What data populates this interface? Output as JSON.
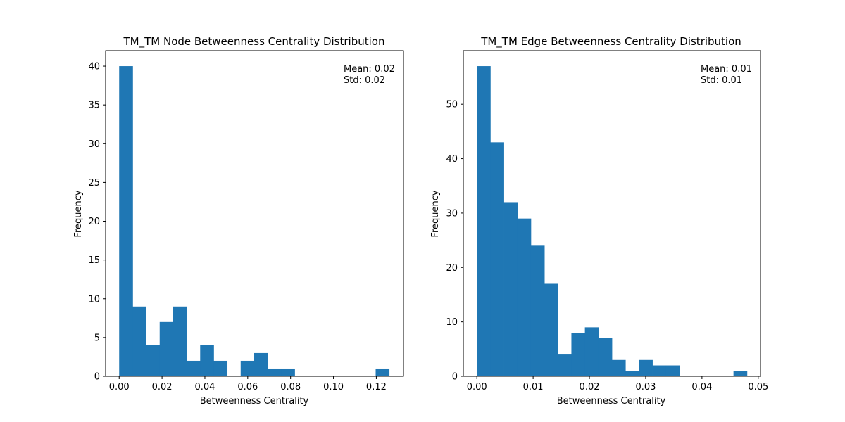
{
  "chart_data": [
    {
      "type": "bar",
      "title": "TM_TM Node Betweenness Centrality Distribution",
      "xlabel": "Betweenness Centrality",
      "ylabel": "Frequency",
      "xlim": [
        -0.00632,
        0.13268
      ],
      "ylim": [
        0,
        42
      ],
      "xticks": [
        0.0,
        0.02,
        0.04,
        0.06,
        0.08,
        0.1,
        0.12
      ],
      "xtick_labels": [
        "0.00",
        "0.02",
        "0.04",
        "0.06",
        "0.08",
        "0.10",
        "0.12"
      ],
      "yticks": [
        0,
        5,
        10,
        15,
        20,
        25,
        30,
        35,
        40
      ],
      "ytick_labels": [
        "0",
        "5",
        "10",
        "15",
        "20",
        "25",
        "30",
        "35",
        "40"
      ],
      "bins": {
        "start": 0.0,
        "width": 0.0063,
        "count": 20
      },
      "values": [
        40,
        9,
        4,
        7,
        9,
        2,
        4,
        2,
        0,
        2,
        3,
        1,
        1,
        0,
        0,
        0,
        0,
        0,
        0,
        1
      ],
      "bar_color": "#1f77b4",
      "annotation": {
        "mean": "Mean: 0.02",
        "std": "Std: 0.02",
        "placement": "top-right"
      },
      "grid": false
    },
    {
      "type": "bar",
      "title": "TM_TM Edge Betweenness Centrality Distribution",
      "xlabel": "Betweenness Centrality",
      "ylabel": "Frequency",
      "xlim": [
        -0.0024,
        0.0504
      ],
      "ylim": [
        0,
        59.85
      ],
      "xticks": [
        0.0,
        0.01,
        0.02,
        0.03,
        0.04,
        0.05
      ],
      "xtick_labels": [
        "0.00",
        "0.01",
        "0.02",
        "0.03",
        "0.04",
        "0.05"
      ],
      "yticks": [
        0,
        10,
        20,
        30,
        40,
        50
      ],
      "ytick_labels": [
        "0",
        "10",
        "20",
        "30",
        "40",
        "50"
      ],
      "bins": {
        "start": 0.0,
        "width": 0.0024,
        "count": 20
      },
      "values": [
        57,
        43,
        32,
        29,
        24,
        17,
        4,
        8,
        9,
        7,
        3,
        1,
        3,
        2,
        2,
        0,
        0,
        0,
        0,
        1
      ],
      "bar_color": "#1f77b4",
      "annotation": {
        "mean": "Mean: 0.01",
        "std": "Std: 0.01",
        "placement": "top-right"
      },
      "grid": false
    }
  ]
}
